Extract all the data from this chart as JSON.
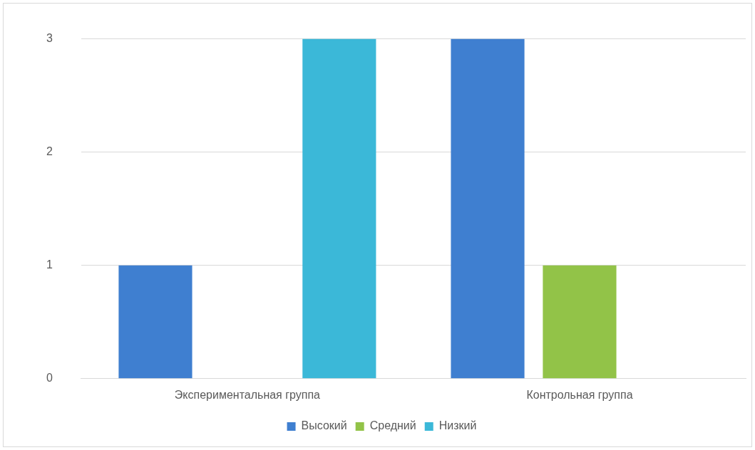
{
  "chart_data": {
    "type": "bar",
    "categories": [
      "Экспериментальная группа",
      "Контрольная группа"
    ],
    "series": [
      {
        "name": "Высокий",
        "color": "#3f7fd0",
        "values": [
          1,
          3
        ]
      },
      {
        "name": "Средний",
        "color": "#92c348",
        "values": [
          0,
          1
        ]
      },
      {
        "name": "Низкий",
        "color": "#3bb8d8",
        "values": [
          3,
          0
        ]
      }
    ],
    "ylim": [
      0,
      3
    ],
    "yticks": [
      0,
      1,
      2,
      3
    ],
    "grid": "y",
    "legend": "bottom"
  }
}
